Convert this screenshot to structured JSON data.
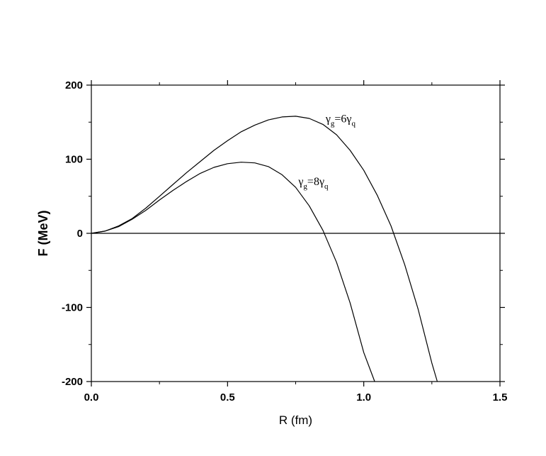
{
  "chart_data": {
    "type": "line",
    "xlabel": "R (fm)",
    "ylabel": "F (MeV)",
    "xlim": [
      0.0,
      1.5
    ],
    "ylim": [
      -200,
      200
    ],
    "x_ticks": [
      0.0,
      0.5,
      1.0,
      1.5
    ],
    "x_tick_labels": [
      "0.0",
      "0.5",
      "1.0",
      "1.5"
    ],
    "y_ticks": [
      -200,
      -100,
      0,
      100,
      200
    ],
    "y_tick_labels": [
      "-200",
      "-100",
      "0",
      "100",
      "200"
    ],
    "x_minor_ticks": [
      0.25,
      0.75,
      1.25
    ],
    "y_minor_ticks": [
      -150,
      -50,
      50,
      150
    ],
    "grid": false,
    "legend": "none",
    "reference_line": {
      "y": 0
    },
    "series": [
      {
        "annotation": {
          "base": "γ",
          "sub1": "g",
          "mid": "=6γ",
          "sub2": "q",
          "x": 0.86,
          "y": 150
        },
        "x": [
          0.0,
          0.05,
          0.1,
          0.15,
          0.2,
          0.25,
          0.3,
          0.35,
          0.4,
          0.45,
          0.5,
          0.55,
          0.6,
          0.65,
          0.7,
          0.75,
          0.8,
          0.85,
          0.9,
          0.95,
          1.0,
          1.05,
          1.1,
          1.15,
          1.2,
          1.25,
          1.27
        ],
        "y": [
          0,
          3,
          10,
          20,
          34,
          50,
          66,
          82,
          97,
          112,
          125,
          137,
          146,
          153,
          157,
          158,
          155,
          147,
          133,
          112,
          85,
          51,
          10,
          -42,
          -103,
          -175,
          -200
        ]
      },
      {
        "annotation": {
          "base": "γ",
          "sub1": "g",
          "mid": "=8γ",
          "sub2": "q",
          "x": 0.76,
          "y": 65
        },
        "x": [
          0.0,
          0.05,
          0.1,
          0.15,
          0.2,
          0.25,
          0.3,
          0.35,
          0.4,
          0.45,
          0.5,
          0.55,
          0.6,
          0.65,
          0.7,
          0.75,
          0.8,
          0.85,
          0.9,
          0.95,
          1.0,
          1.04
        ],
        "y": [
          0,
          3,
          9,
          19,
          31,
          45,
          58,
          70,
          81,
          89,
          94,
          96,
          95,
          90,
          79,
          62,
          37,
          4,
          -39,
          -94,
          -161,
          -200
        ]
      }
    ]
  }
}
